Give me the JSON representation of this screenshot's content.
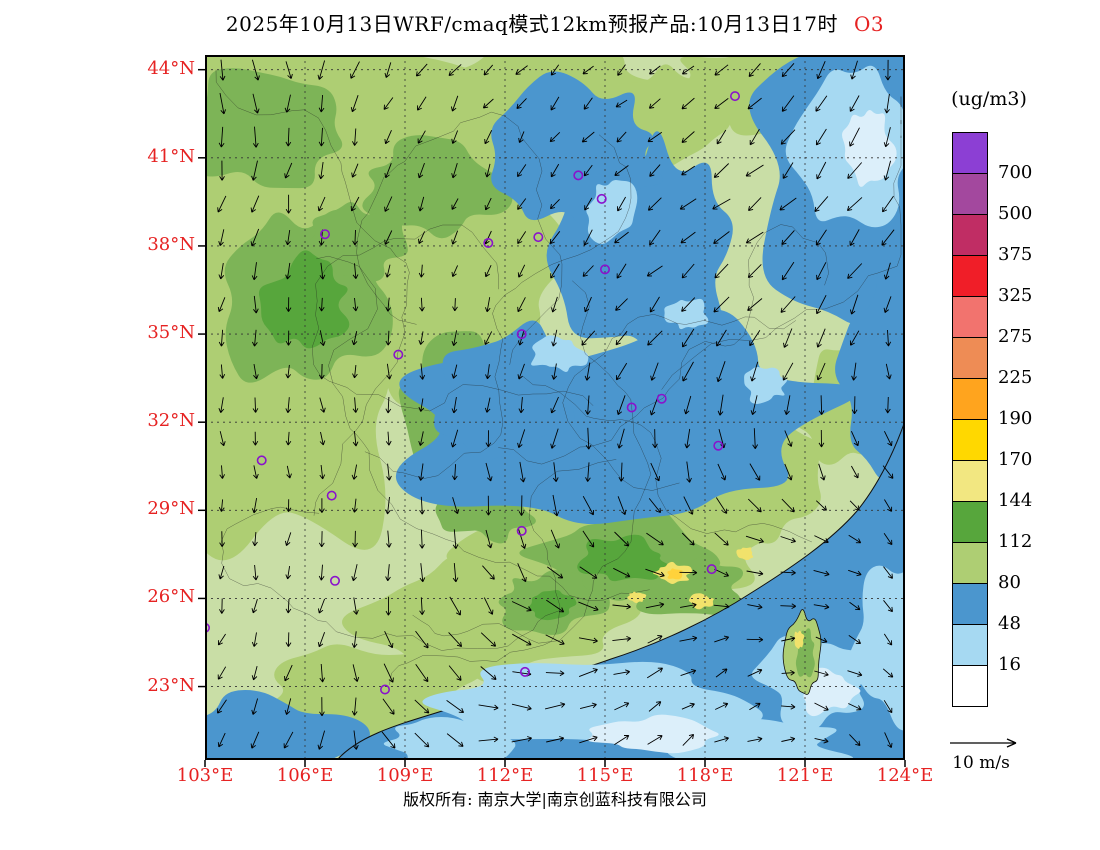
{
  "title": {
    "text": "2025年10月13日WRF/cmaq模式12km预报产品:10月13日17时",
    "pollutant": "O3"
  },
  "footer": {
    "copyright": "版权所有: 南京大学|南京创蓝科技有限公司"
  },
  "colors": {
    "tick_label": "#e62222",
    "title_accent": "#e62222",
    "station_marker": "#8a12cc"
  },
  "chart_data": {
    "type": "heatmap",
    "title": "2025年10月13日WRF/cmaq模式12km预报产品:10月13日17时 O3",
    "variable": "O3",
    "units": "ug/m3",
    "grid": "dashed",
    "legend_position": "right",
    "wind_reference": "10 m/s",
    "x_axis": {
      "range": [
        103,
        124
      ],
      "ticks": [
        {
          "value": 103,
          "label": "103°E"
        },
        {
          "value": 106,
          "label": "106°E"
        },
        {
          "value": 109,
          "label": "109°E"
        },
        {
          "value": 112,
          "label": "112°E"
        },
        {
          "value": 115,
          "label": "115°E"
        },
        {
          "value": 118,
          "label": "118°E"
        },
        {
          "value": 121,
          "label": "121°E"
        },
        {
          "value": 124,
          "label": "124°E"
        }
      ]
    },
    "y_axis": {
      "range": [
        20.5,
        44.5
      ],
      "ticks": [
        {
          "value": 23,
          "label": "23°N"
        },
        {
          "value": 26,
          "label": "26°N"
        },
        {
          "value": 29,
          "label": "29°N"
        },
        {
          "value": 32,
          "label": "32°N"
        },
        {
          "value": 35,
          "label": "35°N"
        },
        {
          "value": 38,
          "label": "38°N"
        },
        {
          "value": 41,
          "label": "41°N"
        },
        {
          "value": 44,
          "label": "44°N"
        }
      ]
    },
    "colorbar": {
      "unit": "(ug/m3)",
      "boundaries_top_to_bottom": [
        700,
        500,
        375,
        325,
        275,
        225,
        190,
        170,
        144,
        112,
        80,
        48,
        16
      ],
      "colors_top_to_bottom": [
        "#8C3FD4",
        "#A3489E",
        "#C02D64",
        "#F01E28",
        "#F2736E",
        "#EE8C55",
        "#FFA41E",
        "#FFD800",
        "#F2E781",
        "#57A63C",
        "#AECE73",
        "#4B96CE",
        "#A6D9F2",
        "#FFFFFF"
      ]
    },
    "station_markers": [
      {
        "lon": 118.9,
        "lat": 43.1
      },
      {
        "lon": 114.2,
        "lat": 40.4
      },
      {
        "lon": 114.9,
        "lat": 39.6
      },
      {
        "lon": 106.6,
        "lat": 38.4
      },
      {
        "lon": 111.5,
        "lat": 38.1
      },
      {
        "lon": 113.0,
        "lat": 38.3
      },
      {
        "lon": 115.0,
        "lat": 37.2
      },
      {
        "lon": 112.5,
        "lat": 35.0
      },
      {
        "lon": 108.8,
        "lat": 34.3
      },
      {
        "lon": 115.8,
        "lat": 32.5
      },
      {
        "lon": 116.7,
        "lat": 32.8
      },
      {
        "lon": 118.4,
        "lat": 31.2
      },
      {
        "lon": 104.7,
        "lat": 30.7
      },
      {
        "lon": 106.8,
        "lat": 29.5
      },
      {
        "lon": 112.5,
        "lat": 28.3
      },
      {
        "lon": 118.2,
        "lat": 27.0
      },
      {
        "lon": 106.9,
        "lat": 26.6
      },
      {
        "lon": 103.0,
        "lat": 25.0
      },
      {
        "lon": 108.4,
        "lat": 22.9
      },
      {
        "lon": 112.6,
        "lat": 23.5
      }
    ]
  }
}
